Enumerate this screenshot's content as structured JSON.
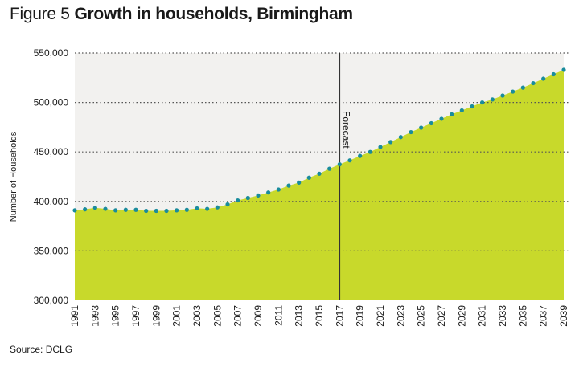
{
  "figure": {
    "prefix": "Figure 5",
    "title": "Growth in households, Birmingham",
    "source": "Source: DCLG"
  },
  "chart_data": {
    "type": "area",
    "ylabel": "Number of Households",
    "xlabel": "",
    "ylim": [
      300000,
      550000
    ],
    "yticks": [
      300000,
      350000,
      400000,
      450000,
      500000,
      550000
    ],
    "ytick_labels": [
      "300,000",
      "350,000",
      "400,000",
      "450,000",
      "500,000",
      "550,000"
    ],
    "xlim": [
      1991,
      2039
    ],
    "xtick_labels": [
      "1991",
      "1993",
      "1995",
      "1997",
      "1999",
      "2001",
      "2003",
      "2005",
      "2007",
      "2009",
      "2011",
      "2013",
      "2015",
      "2017",
      "2019",
      "2021",
      "2023",
      "2025",
      "2027",
      "2029",
      "2031",
      "2033",
      "2035",
      "2037",
      "2039"
    ],
    "grid": "horizontal dotted",
    "forecast": {
      "x": 2017,
      "label": "Forecast"
    },
    "colors": {
      "area": "#c8d92b",
      "points": "#1a8c9c",
      "background": "#f2f1ef",
      "forecast_line": "#333333"
    },
    "series": [
      {
        "x": [
          1991,
          1992,
          1993,
          1994,
          1995,
          1996,
          1997,
          1998,
          1999,
          2000,
          2001,
          2002,
          2003,
          2004,
          2005,
          2006,
          2007,
          2008,
          2009,
          2010,
          2011,
          2012,
          2013,
          2014,
          2015,
          2016,
          2017,
          2018,
          2019,
          2020,
          2021,
          2022,
          2023,
          2024,
          2025,
          2026,
          2027,
          2028,
          2029,
          2030,
          2031,
          2032,
          2033,
          2034,
          2035,
          2036,
          2037,
          2038,
          2039
        ],
        "values": [
          391000,
          392000,
          393500,
          392500,
          391000,
          391500,
          391500,
          390500,
          390500,
          390500,
          391000,
          391500,
          393000,
          392500,
          394000,
          397000,
          401000,
          403500,
          406000,
          409000,
          412000,
          416000,
          419000,
          424000,
          428000,
          433000,
          437500,
          441500,
          446000,
          450000,
          455000,
          460000,
          465000,
          470000,
          474500,
          479000,
          483500,
          488000,
          492000,
          496000,
          500000,
          503000,
          507000,
          511000,
          515000,
          519500,
          524000,
          528500,
          533000
        ]
      }
    ]
  }
}
